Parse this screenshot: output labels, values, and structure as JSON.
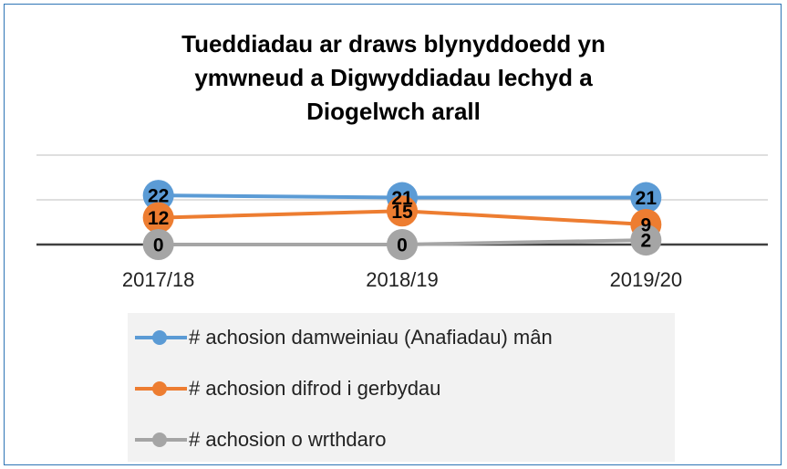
{
  "chart_data": {
    "type": "line",
    "title": "Tueddiadau ar draws blynyddoedd yn ymwneud a Digwyddiadau Iechyd a Diogelwch arall",
    "categories": [
      "2017/18",
      "2018/19",
      "2019/20"
    ],
    "series": [
      {
        "name": "# achosion damweiniau (Anafiadau) mân",
        "color": "#5b9bd5",
        "values": [
          22,
          21,
          21
        ]
      },
      {
        "name": "# achosion difrod i gerbydau",
        "color": "#ed7d31",
        "values": [
          12,
          15,
          9
        ]
      },
      {
        "name": "# achosion o wrthdaro",
        "color": "#a5a5a5",
        "values": [
          0,
          0,
          2
        ]
      }
    ],
    "ylim": [
      0,
      40
    ],
    "yticks": [
      0,
      20,
      40
    ],
    "grid": true,
    "legend": "bottom"
  }
}
